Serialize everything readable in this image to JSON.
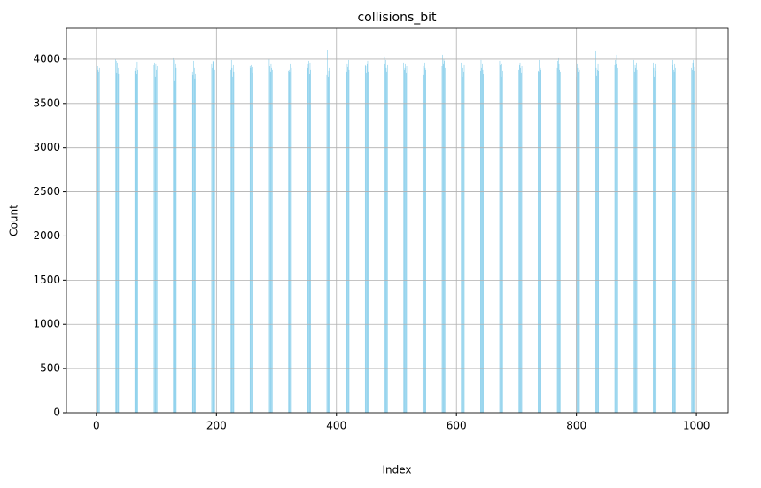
{
  "chart_data": {
    "type": "bar",
    "title": "collisions_bit",
    "xlabel": "Index",
    "ylabel": "Count",
    "x": [
      0,
      1,
      2,
      3,
      4,
      5,
      32,
      33,
      34,
      35,
      36,
      37,
      64,
      65,
      66,
      67,
      68,
      69,
      96,
      97,
      98,
      99,
      100,
      101,
      128,
      129,
      130,
      131,
      132,
      133,
      160,
      161,
      162,
      163,
      164,
      165,
      192,
      193,
      194,
      195,
      196,
      197,
      224,
      225,
      226,
      227,
      228,
      229,
      256,
      257,
      258,
      259,
      260,
      261,
      288,
      289,
      290,
      291,
      292,
      293,
      320,
      321,
      322,
      323,
      324,
      325,
      352,
      353,
      354,
      355,
      356,
      357,
      384,
      385,
      386,
      387,
      388,
      389,
      416,
      417,
      418,
      419,
      420,
      421,
      448,
      449,
      450,
      451,
      452,
      453,
      480,
      481,
      482,
      483,
      484,
      485,
      512,
      513,
      514,
      515,
      516,
      517,
      544,
      545,
      546,
      547,
      548,
      549,
      576,
      577,
      578,
      579,
      580,
      581,
      608,
      609,
      610,
      611,
      612,
      613,
      640,
      641,
      642,
      643,
      644,
      645,
      672,
      673,
      674,
      675,
      676,
      677,
      704,
      705,
      706,
      707,
      708,
      709,
      736,
      737,
      738,
      739,
      740,
      741,
      768,
      769,
      770,
      771,
      772,
      773,
      800,
      801,
      802,
      803,
      804,
      805,
      832,
      833,
      834,
      835,
      836,
      837,
      864,
      865,
      866,
      867,
      868,
      869,
      896,
      897,
      898,
      899,
      900,
      901,
      928,
      929,
      930,
      931,
      932,
      933,
      960,
      961,
      962,
      963,
      964,
      965,
      992,
      993,
      994,
      995,
      996,
      997
    ],
    "values": [
      3850,
      3870,
      3920,
      3880,
      3860,
      3900,
      4000,
      3980,
      3850,
      3960,
      3900,
      3840,
      3870,
      3900,
      3950,
      3830,
      3970,
      3880,
      3940,
      3960,
      3800,
      3950,
      3880,
      3920,
      4020,
      3760,
      3990,
      3870,
      3950,
      3900,
      3860,
      3820,
      3980,
      3900,
      3780,
      3840,
      3950,
      3900,
      3980,
      3970,
      3800,
      3880,
      3880,
      3990,
      3900,
      3800,
      3940,
      3860,
      3930,
      3900,
      3940,
      3880,
      3850,
      3910,
      4000,
      3920,
      3860,
      3950,
      3900,
      3880,
      3870,
      3880,
      3860,
      3950,
      4000,
      3900,
      3900,
      3950,
      3980,
      3830,
      3960,
      3880,
      3820,
      4100,
      3800,
      3870,
      3900,
      3850,
      3980,
      3860,
      3950,
      3910,
      3990,
      3880,
      3940,
      3920,
      3850,
      3950,
      3980,
      3860,
      4030,
      3950,
      3990,
      3900,
      3860,
      3940,
      3960,
      3880,
      3900,
      3950,
      3850,
      3920,
      3990,
      3930,
      3820,
      3960,
      3900,
      3880,
      3920,
      4050,
      3950,
      4000,
      3980,
      3900,
      3960,
      3950,
      3800,
      3900,
      3860,
      3940,
      3870,
      3990,
      3900,
      3950,
      3880,
      3830,
      3980,
      3940,
      3860,
      3800,
      3950,
      3870,
      3880,
      3940,
      3960,
      3900,
      3850,
      3920,
      3870,
      3860,
      3990,
      4010,
      3900,
      3880,
      3900,
      3980,
      4020,
      3950,
      3880,
      3860,
      3800,
      3950,
      3900,
      3860,
      3920,
      3880,
      4090,
      3900,
      3810,
      3880,
      3950,
      3870,
      3940,
      3990,
      3950,
      4050,
      3880,
      3900,
      3990,
      3860,
      3940,
      3900,
      3960,
      3880,
      3960,
      3900,
      3800,
      3950,
      3870,
      3920,
      3940,
      3990,
      3880,
      3860,
      3950,
      3900,
      3900,
      3880,
      3960,
      3990,
      3870,
      3910
    ],
    "color": "#87ceeb",
    "xlim": [
      -50,
      1053
    ],
    "ylim": [
      0,
      4350
    ],
    "xticks": [
      0,
      200,
      400,
      600,
      800,
      1000
    ],
    "yticks": [
      0,
      500,
      1000,
      1500,
      2000,
      2500,
      3000,
      3500,
      4000
    ],
    "grid": true
  }
}
